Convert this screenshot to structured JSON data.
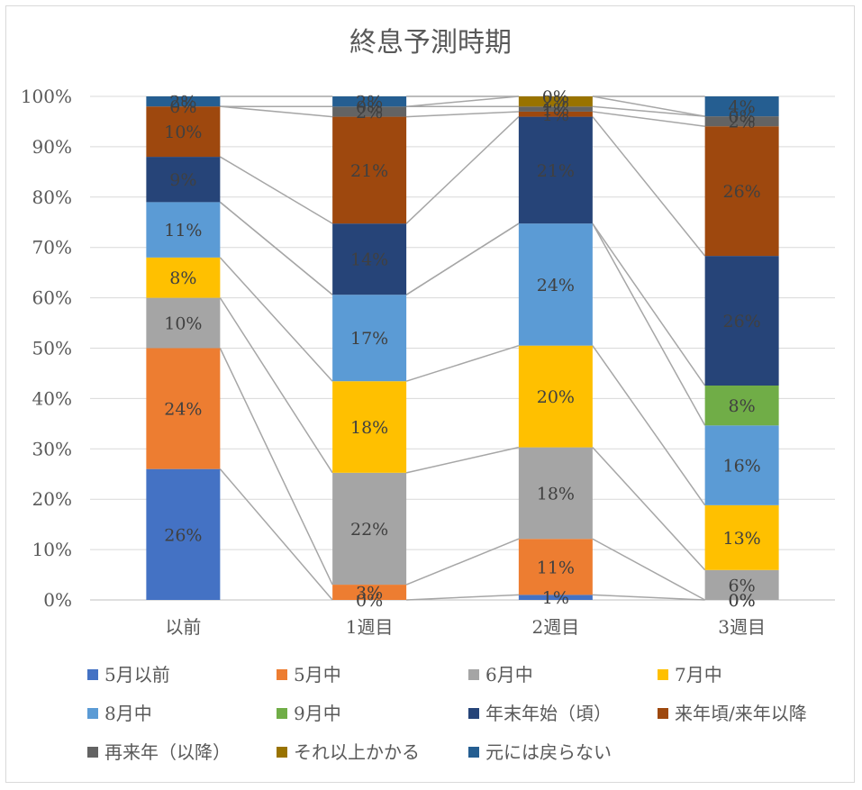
{
  "chart_data": {
    "type": "bar",
    "stacked": true,
    "percent": true,
    "title": "終息予測時期",
    "categories": [
      "以前",
      "1週目",
      "2週目",
      "3週目"
    ],
    "y_ticks": [
      "0%",
      "10%",
      "20%",
      "30%",
      "40%",
      "50%",
      "60%",
      "70%",
      "80%",
      "90%",
      "100%"
    ],
    "ylim": [
      0,
      100
    ],
    "grid": true,
    "legend_position": "bottom",
    "series_lines": true,
    "series": [
      {
        "name": "5月以前",
        "color": "#4472c4",
        "values": [
          26,
          0,
          1,
          0
        ],
        "labels": [
          "26%",
          "0%",
          "1%",
          "0%"
        ]
      },
      {
        "name": "5月中",
        "color": "#ed7d31",
        "values": [
          24,
          3,
          11,
          0
        ],
        "labels": [
          "24%",
          "3%",
          "11%",
          "0%"
        ]
      },
      {
        "name": "6月中",
        "color": "#a5a5a5",
        "values": [
          10,
          22,
          18,
          6
        ],
        "labels": [
          "10%",
          "22%",
          "18%",
          "6%"
        ]
      },
      {
        "name": "7月中",
        "color": "#ffc000",
        "values": [
          8,
          18,
          20,
          13
        ],
        "labels": [
          "8%",
          "18%",
          "20%",
          "13%"
        ]
      },
      {
        "name": "8月中",
        "color": "#5b9bd5",
        "values": [
          11,
          17,
          24,
          16
        ],
        "labels": [
          "11%",
          "17%",
          "24%",
          "16%"
        ]
      },
      {
        "name": "9月中",
        "color": "#70ad47",
        "values": [
          0,
          0,
          0,
          8
        ],
        "labels": [
          "",
          "",
          "",
          "8%"
        ]
      },
      {
        "name": "年末年始（頃）",
        "color": "#264478",
        "values": [
          9,
          14,
          21,
          26
        ],
        "labels": [
          "9%",
          "14%",
          "21%",
          "26%"
        ]
      },
      {
        "name": "来年頃/来年以降",
        "color": "#9e480e",
        "values": [
          10,
          21,
          1,
          26
        ],
        "labels": [
          "10%",
          "21%",
          "1%",
          "26%"
        ]
      },
      {
        "name": "再来年（以降）",
        "color": "#636363",
        "values": [
          0,
          2,
          1,
          2
        ],
        "labels": [
          "0%",
          "2%",
          "1%",
          "2%"
        ]
      },
      {
        "name": "それ以上かかる",
        "color": "#997300",
        "values": [
          0,
          0,
          2,
          0
        ],
        "labels": [
          "",
          "0%",
          "2%",
          "0%"
        ]
      },
      {
        "name": "元には戻らない",
        "color": "#255e91",
        "values": [
          2,
          2,
          0,
          4
        ],
        "labels": [
          "2%",
          "2%",
          "0%",
          "4%"
        ]
      }
    ]
  }
}
